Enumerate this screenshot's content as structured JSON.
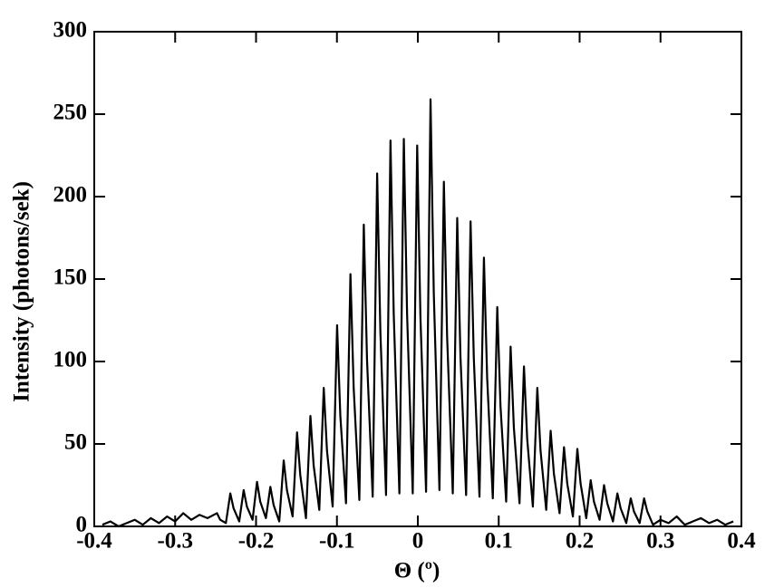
{
  "chart_data": {
    "type": "line",
    "x_label": "Θ (º)",
    "y_label": "Intensity (photons/sek)",
    "xlim": [
      -0.4,
      0.4
    ],
    "xticks": [
      -0.4,
      -0.3,
      -0.2,
      -0.1,
      0,
      0.1,
      0.2,
      0.3,
      0.4
    ],
    "ylim": [
      0,
      300
    ],
    "yticks": [
      0,
      50,
      100,
      150,
      200,
      250,
      300
    ],
    "grid": false,
    "series": [
      {
        "color": "#000000",
        "x": [
          -0.39,
          -0.38,
          -0.37,
          -0.36,
          -0.35,
          -0.34,
          -0.33,
          -0.32,
          -0.31,
          -0.3,
          -0.29,
          -0.28,
          -0.27,
          -0.26,
          -0.2483,
          -0.2443,
          -0.2373,
          -0.2318,
          -0.2278,
          -0.2208,
          -0.2153,
          -0.2113,
          -0.2043,
          -0.1988,
          -0.1948,
          -0.1878,
          -0.1823,
          -0.1783,
          -0.1713,
          -0.1658,
          -0.1618,
          -0.1548,
          -0.1493,
          -0.1453,
          -0.1383,
          -0.1328,
          -0.1288,
          -0.1218,
          -0.1163,
          -0.1123,
          -0.1053,
          -0.0998,
          -0.0958,
          -0.0888,
          -0.0833,
          -0.0793,
          -0.0723,
          -0.0668,
          -0.0628,
          -0.0558,
          -0.0503,
          -0.0463,
          -0.0393,
          -0.0338,
          -0.0298,
          -0.0228,
          -0.0173,
          -0.0133,
          -0.0063,
          -0.0008,
          0.0032,
          0.0102,
          0.0157,
          0.0197,
          0.0267,
          0.0322,
          0.0362,
          0.0432,
          0.0487,
          0.0527,
          0.0597,
          0.0652,
          0.0692,
          0.0762,
          0.0817,
          0.0857,
          0.0927,
          0.0982,
          0.1022,
          0.1092,
          0.1147,
          0.1187,
          0.1257,
          0.1312,
          0.1352,
          0.1422,
          0.1477,
          0.1517,
          0.1587,
          0.1642,
          0.1682,
          0.1752,
          0.1807,
          0.1847,
          0.1917,
          0.1972,
          0.2012,
          0.2082,
          0.2137,
          0.2177,
          0.2247,
          0.2302,
          0.2342,
          0.2412,
          0.2467,
          0.2507,
          0.2577,
          0.2632,
          0.2672,
          0.2742,
          0.2797,
          0.2837,
          0.2907,
          0.3,
          0.31,
          0.32,
          0.33,
          0.34,
          0.35,
          0.36,
          0.37,
          0.38,
          0.39
        ],
        "values": [
          1,
          3,
          0,
          2,
          4,
          1,
          5,
          2,
          6,
          3,
          8,
          4,
          7,
          5,
          8,
          4,
          2,
          20,
          11,
          3,
          22,
          12,
          4,
          27,
          15,
          5,
          24,
          13,
          3,
          40,
          22,
          6,
          57,
          31,
          5,
          67,
          37,
          10,
          84,
          46,
          12,
          122,
          67,
          14,
          153,
          84,
          16,
          183,
          101,
          18,
          214,
          118,
          19,
          234,
          129,
          20,
          235,
          129,
          20,
          231,
          127,
          21,
          259,
          142,
          22,
          209,
          115,
          20,
          187,
          103,
          19,
          185,
          102,
          18,
          163,
          90,
          17,
          133,
          73,
          15,
          109,
          60,
          14,
          97,
          53,
          12,
          84,
          46,
          10,
          58,
          32,
          8,
          48,
          26,
          6,
          47,
          26,
          5,
          28,
          15,
          4,
          25,
          14,
          3,
          20,
          11,
          2,
          17,
          9,
          2,
          17,
          9,
          1,
          4,
          2,
          6,
          1,
          3,
          5,
          2,
          4,
          1,
          3
        ]
      }
    ]
  }
}
